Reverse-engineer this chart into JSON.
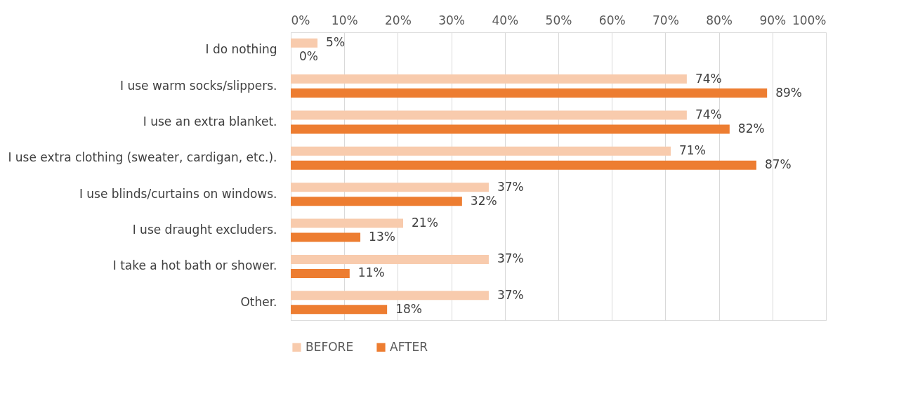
{
  "chart_data": {
    "type": "bar",
    "orientation": "horizontal",
    "categories": [
      "I do nothing",
      "I use warm socks/slippers.",
      "I use an extra blanket.",
      "I use extra clothing (sweater, cardigan, etc.).",
      "I use blinds/curtains on windows.",
      "I use draught excluders.",
      "I take a hot bath or shower.",
      "Other."
    ],
    "series": [
      {
        "name": "BEFORE",
        "color": "#f8cbad",
        "values": [
          5,
          74,
          74,
          71,
          37,
          21,
          37,
          37
        ],
        "value_labels": [
          "5%",
          "74%",
          "74%",
          "71%",
          "37%",
          "21%",
          "37%",
          "37%"
        ]
      },
      {
        "name": "AFTER",
        "color": "#ed7d31",
        "values": [
          0,
          89,
          82,
          87,
          32,
          13,
          11,
          18
        ],
        "value_labels": [
          "0%",
          "89%",
          "82%",
          "87%",
          "32%",
          "13%",
          "11%",
          "18%"
        ]
      }
    ],
    "xlim": [
      0,
      100
    ],
    "xticks": [
      {
        "value": 0,
        "label": "0%"
      },
      {
        "value": 10,
        "label": "10%"
      },
      {
        "value": 20,
        "label": "20%"
      },
      {
        "value": 30,
        "label": "30%"
      },
      {
        "value": 40,
        "label": "40%"
      },
      {
        "value": 50,
        "label": "50%"
      },
      {
        "value": 60,
        "label": "60%"
      },
      {
        "value": 70,
        "label": "70%"
      },
      {
        "value": 80,
        "label": "80%"
      },
      {
        "value": 90,
        "label": "90%"
      },
      {
        "value": 100,
        "label": "100%"
      }
    ],
    "grid": "x",
    "legend": "bottom"
  }
}
